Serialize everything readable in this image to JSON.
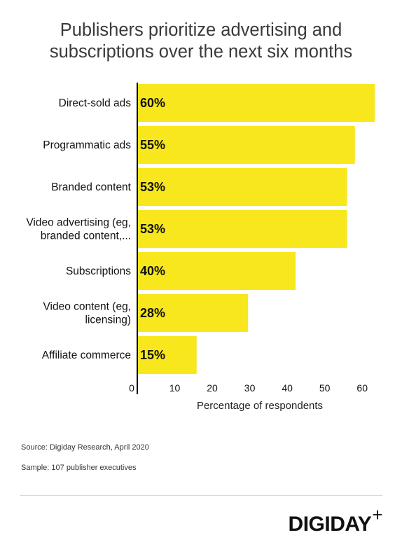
{
  "chart_data": {
    "type": "bar",
    "orientation": "horizontal",
    "title_lines": [
      "Publishers prioritize advertising and",
      "subscriptions over the next six months"
    ],
    "categories": [
      [
        "Direct-sold ads"
      ],
      [
        "Programmatic ads"
      ],
      [
        "Branded content"
      ],
      [
        "Video advertising (eg,",
        "branded content,..."
      ],
      [
        "Subscriptions"
      ],
      [
        "Video content (eg,",
        "licensing)"
      ],
      [
        "Affiliate commerce"
      ]
    ],
    "values": [
      60,
      55,
      53,
      53,
      40,
      28,
      15
    ],
    "value_labels": [
      "60%",
      "55%",
      "53%",
      "53%",
      "40%",
      "28%",
      "15%"
    ],
    "xlabel": "Percentage of respondents",
    "ylabel": "",
    "xlim": [
      0,
      60
    ],
    "xticks": [
      0,
      10,
      20,
      30,
      40,
      50,
      60
    ],
    "bar_color": "#f7e71c",
    "grid": false
  },
  "footer": {
    "source": "Source: Digiday Research, April 2020",
    "sample": "Sample: 107 publisher executives",
    "brand": "DIGIDAY",
    "brand_plus": "+"
  }
}
